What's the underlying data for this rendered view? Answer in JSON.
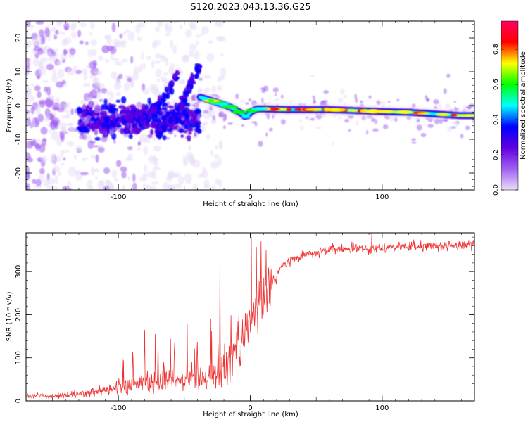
{
  "title": "S120.2023.043.13.36.G25",
  "chart_data": [
    {
      "type": "heatmap",
      "xlabel": "Height of straight line (km)",
      "ylabel": "Frequency (Hz)",
      "xlim": [
        -170,
        170
      ],
      "ylim": [
        -25,
        25
      ],
      "x_ticks": [
        -100,
        0,
        100
      ],
      "x_tick_labels": [
        "-100",
        "0",
        "100"
      ],
      "y_ticks": [
        -20,
        -10,
        0,
        10,
        20
      ],
      "y_tick_labels": [
        "-20",
        "-10",
        "0",
        "10",
        "20"
      ],
      "colorbar": {
        "label": "Normalized spectral amplitude",
        "range": [
          0,
          0.96
        ],
        "ticks": [
          0,
          0.2,
          0.4,
          0.6,
          0.8
        ],
        "tick_labels": [
          "0.0",
          "0.2",
          "0.4",
          "0.6",
          "0.8"
        ],
        "colors": [
          "#e8ddf8",
          "#a060f0",
          "#6000e0",
          "#0000ff",
          "#00ffff",
          "#00ff00",
          "#ffff00",
          "#ff0000",
          "#ff0060"
        ]
      },
      "ridge": {
        "x": [
          -38,
          -30,
          -22,
          -15,
          -8,
          -3,
          0,
          5,
          10,
          30,
          60,
          80,
          100,
          120,
          140,
          160,
          170
        ],
        "y": [
          2.5,
          1.5,
          0.5,
          -0.5,
          -2,
          -3.5,
          -2,
          -1,
          -1,
          -1.2,
          -1.2,
          -1.5,
          -1.8,
          -2,
          -2.5,
          -3,
          -3
        ]
      },
      "streaks": [
        {
          "x": [
            -120,
            -90,
            -75,
            -60,
            -55
          ],
          "y": [
            -6,
            -4,
            -2,
            5,
            10
          ]
        },
        {
          "x": [
            -70,
            -55,
            -48,
            -42,
            -38
          ],
          "y": [
            -8,
            -2,
            4,
            9,
            11
          ]
        }
      ],
      "grid": false
    },
    {
      "type": "line",
      "xlabel": "Height of straight line (km)",
      "ylabel": "SNR (10 * v/v)",
      "xlim": [
        -170,
        170
      ],
      "ylim": [
        0,
        390
      ],
      "x_ticks": [
        -100,
        0,
        100
      ],
      "x_tick_labels": [
        "-100",
        "0",
        "100"
      ],
      "y_ticks": [
        0,
        100,
        200,
        300
      ],
      "y_tick_labels": [
        "0",
        "100",
        "200",
        "300"
      ],
      "color": "#ee3333",
      "trend": {
        "x": [
          -170,
          -140,
          -120,
          -100,
          -80,
          -60,
          -40,
          -25,
          -15,
          -5,
          0,
          10,
          15,
          25,
          40,
          60,
          90,
          120,
          150,
          170
        ],
        "y": [
          12,
          12,
          18,
          30,
          45,
          50,
          55,
          60,
          100,
          160,
          200,
          230,
          270,
          315,
          340,
          350,
          355,
          358,
          360,
          362
        ]
      },
      "spikes": [
        {
          "x": -80,
          "y": 165
        },
        {
          "x": -72,
          "y": 155
        },
        {
          "x": -48,
          "y": 180
        },
        {
          "x": -30,
          "y": 190
        },
        {
          "x": -23,
          "y": 315
        },
        {
          "x": 8,
          "y": 370
        },
        {
          "x": 12,
          "y": 350
        },
        {
          "x": 92,
          "y": 390
        }
      ],
      "grid": false
    }
  ]
}
